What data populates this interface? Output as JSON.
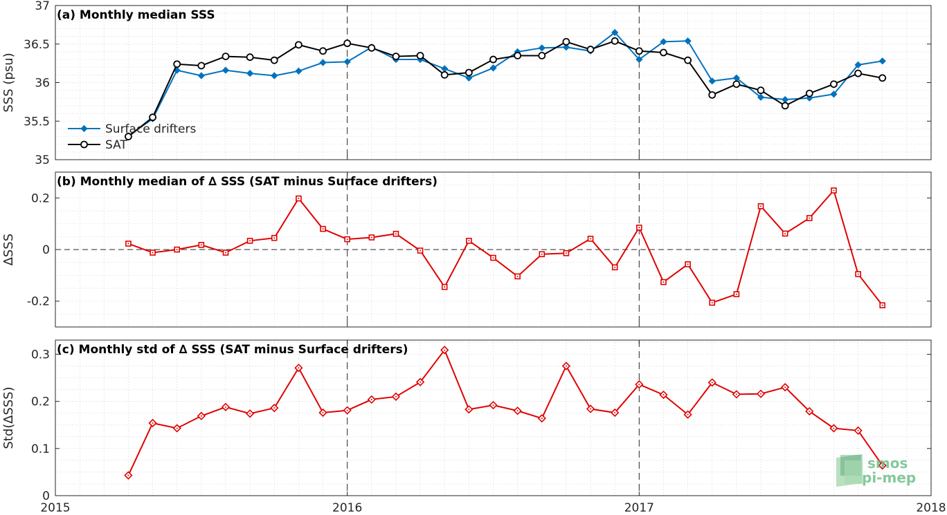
{
  "colors": {
    "drifters": "#0072BD",
    "sat": "#000000",
    "delta": "#E00000",
    "logo_light": "#a8d8b0",
    "logo_dark": "#2e8b57",
    "logo_text": "#6fbf8a"
  },
  "logo": {
    "line1": "smos",
    "line2": "pi-mep"
  },
  "chart_data": [
    {
      "type": "line",
      "title": "(a) Monthly median SSS",
      "ylabel": "SSS (psu)",
      "xlim": [
        2015,
        2018
      ],
      "ylim": [
        35,
        37
      ],
      "xticks": [
        "2015",
        "2016",
        "2017",
        "2018"
      ],
      "yticks": [
        "35",
        "35.5",
        "36",
        "36.5",
        "37"
      ],
      "legend": "lower-left",
      "grid": true,
      "x": [
        "2015-04",
        "2015-05",
        "2015-06",
        "2015-07",
        "2015-08",
        "2015-09",
        "2015-10",
        "2015-11",
        "2015-12",
        "2016-01",
        "2016-02",
        "2016-03",
        "2016-04",
        "2016-05",
        "2016-06",
        "2016-07",
        "2016-08",
        "2016-09",
        "2016-10",
        "2016-11",
        "2016-12",
        "2017-01",
        "2017-02",
        "2017-03",
        "2017-04",
        "2017-05",
        "2017-06",
        "2017-07",
        "2017-08",
        "2017-09",
        "2017-10",
        "2017-11"
      ],
      "series": [
        {
          "name": "Surface drifters",
          "marker": "diamond",
          "values": [
            35.31,
            35.53,
            36.16,
            36.09,
            36.16,
            36.12,
            36.09,
            36.15,
            36.26,
            36.27,
            36.46,
            36.3,
            36.3,
            36.18,
            36.06,
            36.19,
            36.4,
            36.45,
            36.46,
            36.41,
            36.65,
            36.3,
            36.53,
            36.54,
            36.02,
            36.06,
            35.81,
            35.78,
            35.8,
            35.85,
            36.23,
            36.28
          ]
        },
        {
          "name": "SAT",
          "marker": "circle",
          "values": [
            35.3,
            35.55,
            36.24,
            36.22,
            36.34,
            36.33,
            36.29,
            36.49,
            36.41,
            36.51,
            36.45,
            36.34,
            36.35,
            36.1,
            36.13,
            36.3,
            36.35,
            36.35,
            36.53,
            36.43,
            36.54,
            36.41,
            36.39,
            36.29,
            35.84,
            35.98,
            35.9,
            35.7,
            35.86,
            35.98,
            36.12,
            36.06
          ]
        }
      ]
    },
    {
      "type": "line",
      "title": "(b) Monthly median of ∆ SSS (SAT minus Surface drifters)",
      "ylabel": "∆SSS",
      "xlim": [
        2015,
        2018
      ],
      "ylim": [
        -0.3,
        0.3
      ],
      "yticks": [
        "-0.2",
        "0",
        "0.2"
      ],
      "grid": true,
      "x": [
        "2015-04",
        "2015-05",
        "2015-06",
        "2015-07",
        "2015-08",
        "2015-09",
        "2015-10",
        "2015-11",
        "2015-12",
        "2016-01",
        "2016-02",
        "2016-03",
        "2016-04",
        "2016-05",
        "2016-06",
        "2016-07",
        "2016-08",
        "2016-09",
        "2016-10",
        "2016-11",
        "2016-12",
        "2017-01",
        "2017-02",
        "2017-03",
        "2017-04",
        "2017-05",
        "2017-06",
        "2017-07",
        "2017-08",
        "2017-09",
        "2017-10",
        "2017-11"
      ],
      "series": [
        {
          "marker": "square",
          "values": [
            0.023,
            -0.012,
            0.0,
            0.018,
            -0.012,
            0.034,
            0.045,
            0.198,
            0.08,
            0.04,
            0.047,
            0.061,
            -0.004,
            -0.145,
            0.034,
            -0.032,
            -0.104,
            -0.018,
            -0.014,
            0.042,
            -0.069,
            0.085,
            -0.126,
            -0.057,
            -0.206,
            -0.173,
            0.168,
            0.062,
            0.122,
            0.229,
            -0.095,
            -0.216
          ]
        }
      ]
    },
    {
      "type": "line",
      "title": "(c) Monthly std of ∆ SSS (SAT minus Surface drifters)",
      "ylabel": "Std(∆SSS)",
      "xlim": [
        2015,
        2018
      ],
      "ylim": [
        0,
        0.33
      ],
      "yticks": [
        "0",
        "0.1",
        "0.2",
        "0.3"
      ],
      "grid": true,
      "x": [
        "2015-04",
        "2015-05",
        "2015-06",
        "2015-07",
        "2015-08",
        "2015-09",
        "2015-10",
        "2015-11",
        "2015-12",
        "2016-01",
        "2016-02",
        "2016-03",
        "2016-04",
        "2016-05",
        "2016-06",
        "2016-07",
        "2016-08",
        "2016-09",
        "2016-10",
        "2016-11",
        "2016-12",
        "2017-01",
        "2017-02",
        "2017-03",
        "2017-04",
        "2017-05",
        "2017-06",
        "2017-07",
        "2017-08",
        "2017-09",
        "2017-10",
        "2017-11"
      ],
      "series": [
        {
          "marker": "diamond",
          "values": [
            0.043,
            0.154,
            0.143,
            0.169,
            0.188,
            0.174,
            0.186,
            0.271,
            0.176,
            0.181,
            0.204,
            0.21,
            0.241,
            0.309,
            0.183,
            0.192,
            0.18,
            0.164,
            0.275,
            0.184,
            0.176,
            0.236,
            0.214,
            0.172,
            0.24,
            0.215,
            0.216,
            0.23,
            0.179,
            0.143,
            0.138,
            0.064
          ]
        }
      ]
    }
  ]
}
